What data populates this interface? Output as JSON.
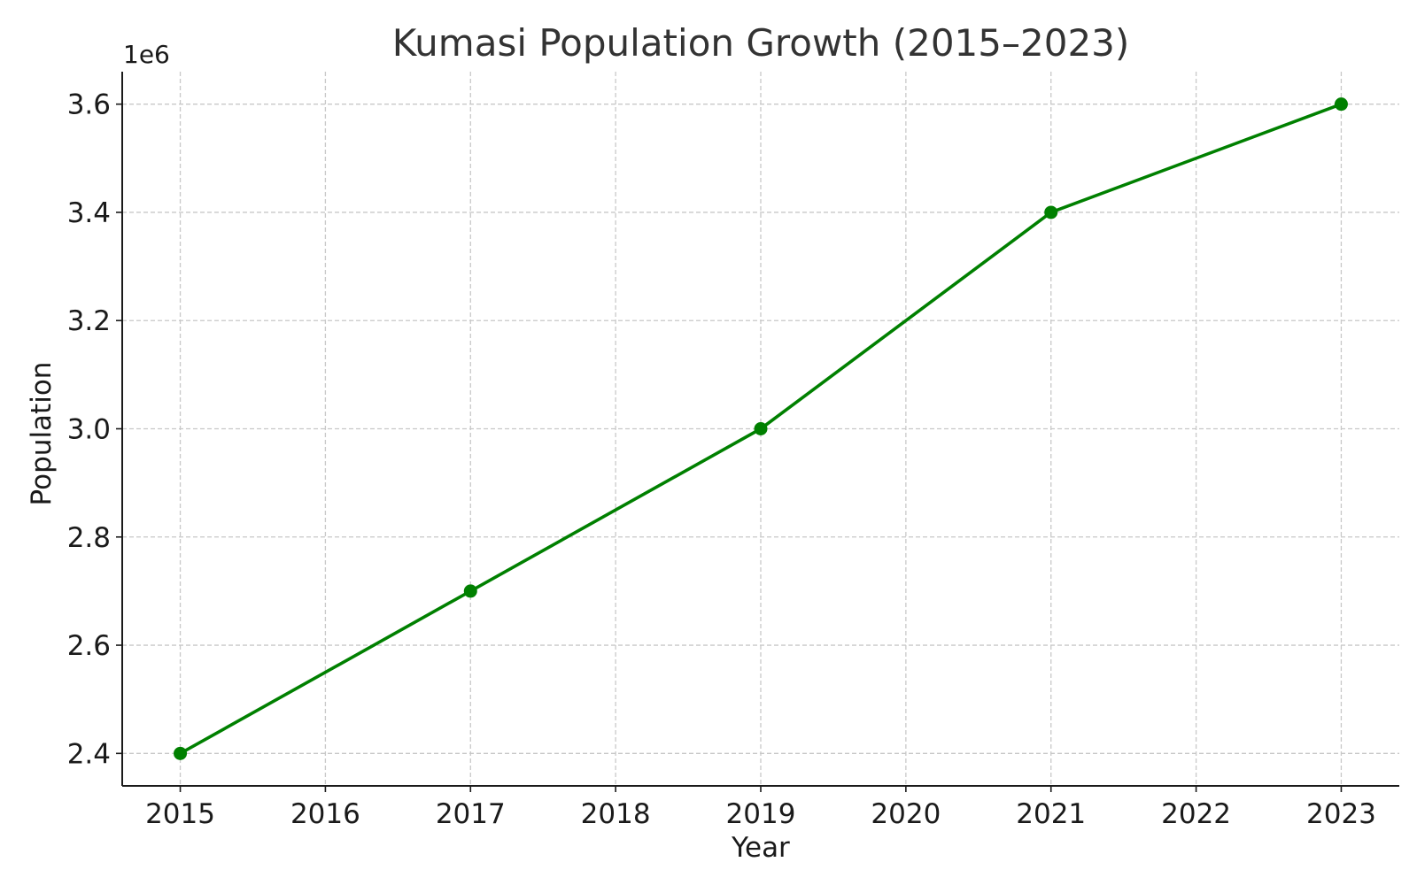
{
  "chart_data": {
    "type": "line",
    "title": "Kumasi Population Growth (2015–2023)",
    "xlabel": "Year",
    "ylabel": "Population",
    "y_offset_label": "1e6",
    "x": [
      2015,
      2017,
      2019,
      2021,
      2023
    ],
    "series": [
      {
        "values": [
          2400000,
          2700000,
          3000000,
          3400000,
          3600000
        ],
        "color": "#008000",
        "marker": "circle"
      }
    ],
    "x_ticks": [
      2015,
      2016,
      2017,
      2018,
      2019,
      2020,
      2021,
      2022,
      2023
    ],
    "x_tick_labels": [
      "2015",
      "2016",
      "2017",
      "2018",
      "2019",
      "2020",
      "2021",
      "2022",
      "2023"
    ],
    "y_ticks": [
      2400000,
      2600000,
      2800000,
      3000000,
      3200000,
      3400000,
      3600000
    ],
    "y_tick_labels": [
      "2.4",
      "2.6",
      "2.8",
      "3.0",
      "3.2",
      "3.4",
      "3.6"
    ],
    "xlim": [
      2014.6,
      2023.4
    ],
    "ylim": [
      2340000,
      3660000
    ],
    "grid": true,
    "legend": false
  }
}
